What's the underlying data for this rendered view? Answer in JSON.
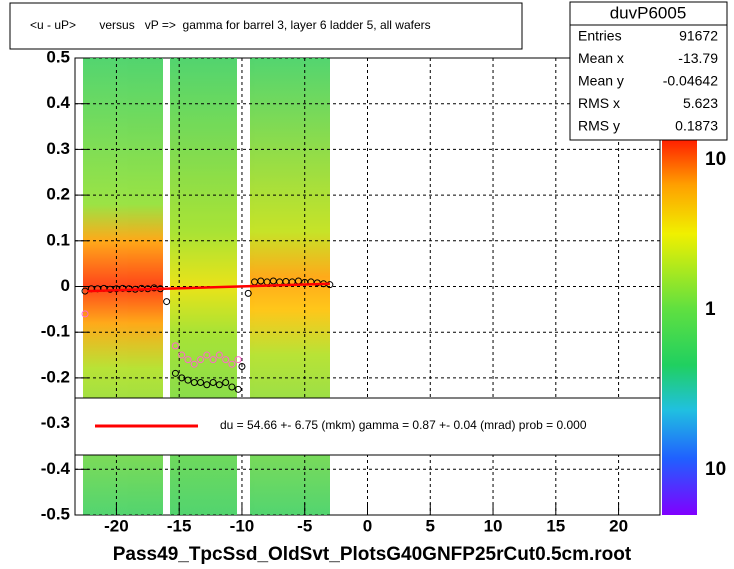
{
  "chart_data": {
    "type": "scatter",
    "title": "<u - uP>       versus   vP =>  gamma for barrel 3, layer 6 ladder 5, all wafers",
    "xlabel": "Pass49_TpcSsd_OldSvt_PlotsG40GNFP25rCut0.5cm.root",
    "fit_label": "du =   54.66 +-  6.75 (mkm) gamma =    0.87 +-  0.04 (mrad) prob = 0.000",
    "stats": {
      "title": "duvP6005",
      "rows": [
        [
          "Entries",
          "91672"
        ],
        [
          "Mean x",
          "-13.79"
        ],
        [
          "Mean y",
          "-0.04642"
        ],
        [
          "RMS x",
          "5.623"
        ],
        [
          "RMS y",
          "0.1873"
        ]
      ]
    },
    "colorbar_labels": [
      "10",
      "1",
      "10"
    ],
    "xlim": [
      -23.3,
      23.3
    ],
    "ylim": [
      -0.5,
      0.5
    ],
    "xticks": [
      -20,
      -15,
      -10,
      -5,
      0,
      5,
      10,
      15,
      20
    ],
    "yticks": [
      0.5,
      0.4,
      0.3,
      0.2,
      0.1,
      0,
      -0.1,
      -0.2,
      -0.3,
      -0.4,
      -0.5
    ],
    "grid": true,
    "series": [
      {
        "color": "#000000",
        "marker": "circle",
        "x": [
          -22.5,
          -22,
          -21.5,
          -21,
          -20.5,
          -20,
          -19.5,
          -19,
          -18.5,
          -18,
          -17.5,
          -17,
          -16.5,
          -16,
          -15.3,
          -14.8,
          -14.3,
          -13.8,
          -13.3,
          -12.8,
          -12.3,
          -11.8,
          -11.3,
          -10.8,
          -10.3,
          -10,
          -9.5,
          -9,
          -8.5,
          -8,
          -7.5,
          -7,
          -6.5,
          -6,
          -5.5,
          -5,
          -4.5,
          -4,
          -3.5,
          -3
        ],
        "values": [
          -0.01,
          -0.005,
          -0.005,
          -0.004,
          -0.006,
          -0.005,
          -0.004,
          -0.005,
          -0.006,
          -0.004,
          -0.005,
          -0.003,
          -0.005,
          -0.033,
          -0.19,
          -0.2,
          -0.205,
          -0.21,
          -0.21,
          -0.215,
          -0.21,
          -0.215,
          -0.21,
          -0.22,
          -0.225,
          -0.175,
          -0.015,
          0.01,
          0.012,
          0.01,
          0.012,
          0.01,
          0.011,
          0.01,
          0.012,
          0.009,
          0.01,
          0.008,
          0.006,
          0.004
        ]
      },
      {
        "color": "#ff66cc",
        "marker": "circle",
        "x": [
          -22.5,
          -15.3,
          -14.8,
          -14.3,
          -13.8,
          -13.3,
          -12.8,
          -12.3,
          -11.8,
          -11.3,
          -10.8,
          -10.3
        ],
        "values": [
          -0.06,
          -0.13,
          -0.15,
          -0.16,
          -0.17,
          -0.16,
          -0.15,
          -0.16,
          -0.15,
          -0.16,
          -0.17,
          -0.16
        ]
      },
      {
        "color": "#ff0000",
        "marker": "line",
        "x": [
          -22.3,
          -3
        ],
        "values": [
          -0.01,
          0.006
        ]
      }
    ]
  }
}
